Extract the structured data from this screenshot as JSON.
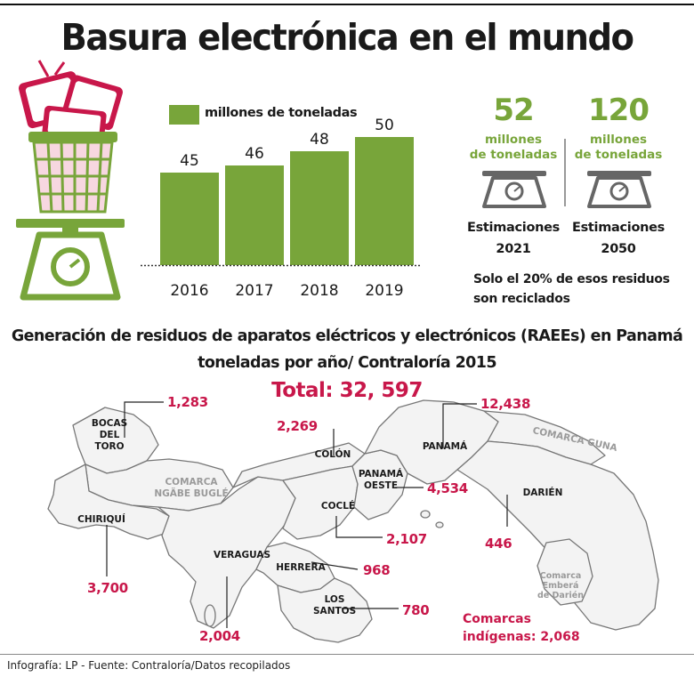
{
  "title": "Basura electrónica en el mundo",
  "colors": {
    "green": "#78a53a",
    "red": "#c8174a",
    "map_fill": "#f3f3f3",
    "map_stroke": "#777777"
  },
  "icons": {
    "trash": "trash-can-with-tvs-icon",
    "scale": "scale-icon"
  },
  "chart_data": {
    "type": "bar",
    "categories": [
      "2016",
      "2017",
      "2018",
      "2019"
    ],
    "series": [
      {
        "name": "millones de toneladas",
        "values": [
          45,
          46,
          48,
          50
        ]
      }
    ],
    "title": "",
    "xlabel": "",
    "ylabel": "",
    "ylim": [
      32,
      50
    ],
    "grid": false,
    "legend": "top-left"
  },
  "stats": [
    {
      "value": "52",
      "unit_line1": "millones",
      "unit_line2": "de  toneladas",
      "label_line1": "Estimaciones",
      "label_line2": "2021"
    },
    {
      "value": "120",
      "unit_line1": "millones",
      "unit_line2": "de  toneladas",
      "label_line1": "Estimaciones",
      "label_line2": "2050"
    }
  ],
  "note_line1": "Solo el 20% de esos residuos",
  "note_line2": "son reciclados",
  "map": {
    "subtitle_line1": "Generación de residuos de aparatos eléctricos y electrónicos (RAEEs) en Panamá",
    "subtitle_line2": "toneladas por año/ Contraloría 2015",
    "total": "Total: 32, 597",
    "provinces": [
      {
        "name_line1": "BOCAS",
        "name_line2": "DEL",
        "name_line3": "TORO",
        "value": "1,283"
      },
      {
        "name_line1": "COLÓN",
        "value": "2,269"
      },
      {
        "name_line1": "PANAMÁ",
        "value": "12,438"
      },
      {
        "name_line1": "PANAMÁ",
        "name_line2": "OESTE",
        "value": "4,534"
      },
      {
        "name_line1": "COCLÉ",
        "value": "2,107"
      },
      {
        "name_line1": "CHIRIQUÍ",
        "value": "3,700"
      },
      {
        "name_line1": "VERAGUAS",
        "value": "2,004"
      },
      {
        "name_line1": "HERRERA",
        "value": "968"
      },
      {
        "name_line1": "LOS",
        "name_line2": "SANTOS",
        "value": "780"
      },
      {
        "name_line1": "DARIÉN",
        "value": "446"
      }
    ],
    "comarcas": {
      "ngabe_line1": "COMARCA",
      "ngabe_line2": "NGÄBE BUGLÉ",
      "guna": "COMARCA GUNA",
      "embera_line1": "Comarca",
      "embera_line2": "Emberá",
      "embera_line3": "de Darién",
      "indigenas_line1": "Comarcas",
      "indigenas_line2": "indígenas: 2,068"
    }
  },
  "footer": "Infografía: LP  -  Fuente: Contraloría/Datos recopilados"
}
